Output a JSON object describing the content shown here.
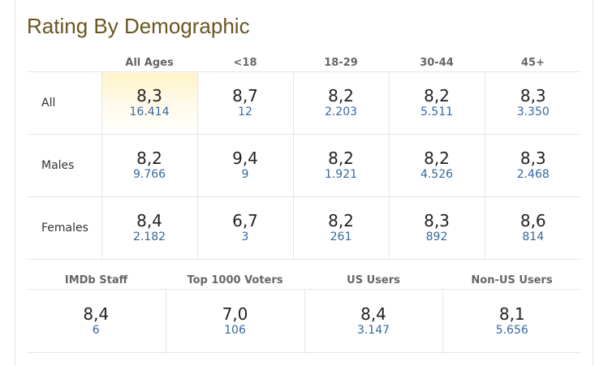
{
  "title": "Rating By Demographic",
  "main_table": {
    "columns": [
      "All Ages",
      "<18",
      "18-29",
      "30-44",
      "45+"
    ],
    "rows": [
      {
        "label": "All",
        "cells": [
          {
            "rating": "8,3",
            "votes": "16.414"
          },
          {
            "rating": "8,7",
            "votes": "12"
          },
          {
            "rating": "8,2",
            "votes": "2.203"
          },
          {
            "rating": "8,2",
            "votes": "5.511"
          },
          {
            "rating": "8,3",
            "votes": "3.350"
          }
        ]
      },
      {
        "label": "Males",
        "cells": [
          {
            "rating": "8,2",
            "votes": "9.766"
          },
          {
            "rating": "9,4",
            "votes": "9"
          },
          {
            "rating": "8,2",
            "votes": "1.921"
          },
          {
            "rating": "8,2",
            "votes": "4.526"
          },
          {
            "rating": "8,3",
            "votes": "2.468"
          }
        ]
      },
      {
        "label": "Females",
        "cells": [
          {
            "rating": "8,4",
            "votes": "2.182"
          },
          {
            "rating": "6,7",
            "votes": "3"
          },
          {
            "rating": "8,2",
            "votes": "261"
          },
          {
            "rating": "8,3",
            "votes": "892"
          },
          {
            "rating": "8,6",
            "votes": "814"
          }
        ]
      }
    ]
  },
  "bottom_table": {
    "columns": [
      "IMDb Staff",
      "Top 1000 Voters",
      "US Users",
      "Non-US Users"
    ],
    "cells": [
      {
        "rating": "8,4",
        "votes": "6"
      },
      {
        "rating": "7,0",
        "votes": "106"
      },
      {
        "rating": "8,4",
        "votes": "3.147"
      },
      {
        "rating": "8,1",
        "votes": "5.656"
      }
    ]
  },
  "colors": {
    "title": "#6b5621",
    "votes_link": "#3568a0",
    "highlight": "#fff3c8",
    "border": "#e6e6e6"
  }
}
